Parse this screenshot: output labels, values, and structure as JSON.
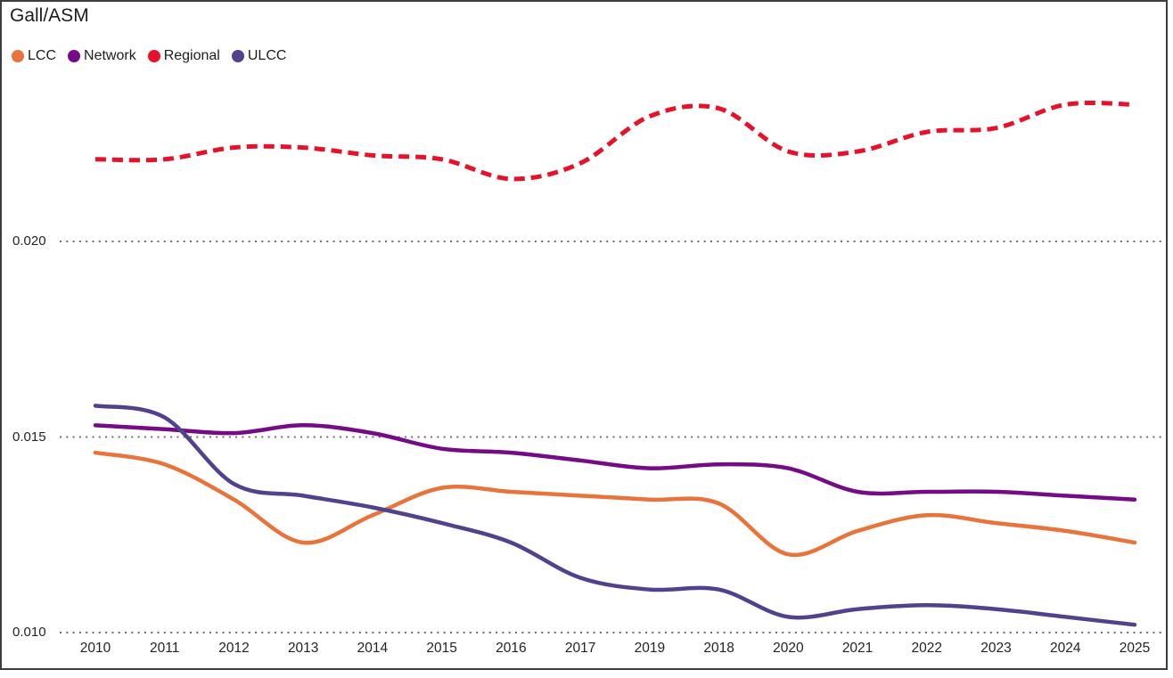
{
  "title": "Gall/ASM",
  "legend": {
    "items": [
      {
        "label": "LCC",
        "color": "#E8743B"
      },
      {
        "label": "Network",
        "color": "#750B86"
      },
      {
        "label": "Regional",
        "color": "#E8112A"
      },
      {
        "label": "ULCC",
        "color": "#52418C"
      }
    ]
  },
  "chart_data": {
    "type": "line",
    "title": "Gall/ASM",
    "ylabel": "Gall/ASM",
    "xlabel": "",
    "categories": [
      "2010",
      "2011",
      "2012",
      "2013",
      "2014",
      "2015",
      "2016",
      "2017",
      "2019",
      "2018",
      "2020",
      "2021",
      "2022",
      "2023",
      "2024",
      "2025"
    ],
    "y_ticks": [
      "0.010",
      "0.015",
      "0.020"
    ],
    "ylim": [
      0.0095,
      0.0245
    ],
    "grid": "horizontal-dotted",
    "grid_color": "#6E6E6E",
    "legend_position": "top-left",
    "series": [
      {
        "name": "LCC",
        "color": "#E8743B",
        "style": "solid",
        "values": [
          0.0146,
          0.0143,
          0.0134,
          0.0123,
          0.013,
          0.0137,
          0.0136,
          0.0135,
          0.0134,
          0.0133,
          0.012,
          0.0126,
          0.013,
          0.0128,
          0.0126,
          0.0123
        ]
      },
      {
        "name": "Network",
        "color": "#750B86",
        "style": "solid",
        "values": [
          0.0153,
          0.0152,
          0.0151,
          0.0153,
          0.0151,
          0.0147,
          0.0146,
          0.0144,
          0.0142,
          0.0143,
          0.0142,
          0.0136,
          0.0136,
          0.0136,
          0.0135,
          0.0134
        ]
      },
      {
        "name": "Regional",
        "color": "#E8112A",
        "style": "dashed",
        "values": [
          0.0221,
          0.0221,
          0.0224,
          0.0224,
          0.0222,
          0.0221,
          0.0216,
          0.022,
          0.0232,
          0.0234,
          0.0223,
          0.0223,
          0.0228,
          0.0229,
          0.0235,
          0.0235
        ]
      },
      {
        "name": "ULCC",
        "color": "#52418C",
        "style": "solid",
        "values": [
          0.0158,
          0.0155,
          0.0138,
          0.0135,
          0.0132,
          0.0128,
          0.0123,
          0.0114,
          0.0111,
          0.0111,
          0.0104,
          0.0106,
          0.0107,
          0.0106,
          0.0104,
          0.0102
        ]
      }
    ]
  }
}
